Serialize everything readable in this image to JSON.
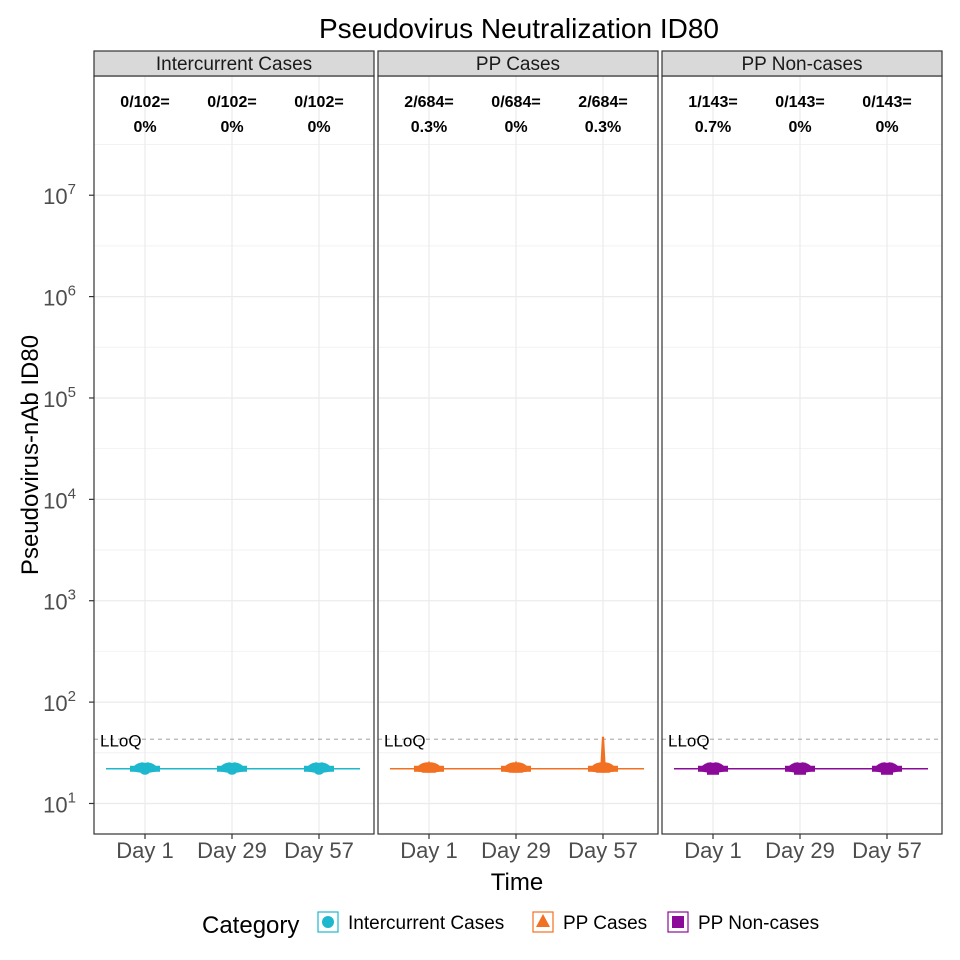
{
  "chart_data": {
    "type": "violin",
    "title": "Pseudovirus Neutralization ID80",
    "xlabel": "Time",
    "ylabel": "Pseudovirus-nAb ID80",
    "y_scale": "log10",
    "ylim": [
      5,
      150000000
    ],
    "y_ticks": [
      {
        "base": "10",
        "exp": "1",
        "value": 10
      },
      {
        "base": "10",
        "exp": "2",
        "value": 100
      },
      {
        "base": "10",
        "exp": "3",
        "value": 1000
      },
      {
        "base": "10",
        "exp": "4",
        "value": 10000
      },
      {
        "base": "10",
        "exp": "5",
        "value": 100000
      },
      {
        "base": "10",
        "exp": "6",
        "value": 1000000
      },
      {
        "base": "10",
        "exp": "7",
        "value": 10000000
      }
    ],
    "categories": [
      "Day 1",
      "Day 29",
      "Day 57"
    ],
    "grid": true,
    "lloq": {
      "label": "LLoQ",
      "value": 43
    },
    "legend": {
      "title": "Category",
      "position": "bottom",
      "entries": [
        {
          "label": "Intercurrent Cases",
          "color": "#1EB8CE",
          "shape": "circle"
        },
        {
          "label": "PP Cases",
          "color": "#F27022",
          "shape": "triangle"
        },
        {
          "label": "PP Non-cases",
          "color": "#8B0A9A",
          "shape": "square"
        }
      ]
    },
    "panels": [
      {
        "strip": "Intercurrent Cases",
        "color": "#1EB8CE",
        "shape": "circle",
        "annotations": [
          {
            "line1": "0/102=",
            "line2": "0%"
          },
          {
            "line1": "0/102=",
            "line2": "0%"
          },
          {
            "line1": "0/102=",
            "line2": "0%"
          }
        ],
        "values": [
          22,
          22,
          22
        ],
        "max": [
          22,
          22,
          22
        ]
      },
      {
        "strip": "PP Cases",
        "color": "#F27022",
        "shape": "triangle",
        "annotations": [
          {
            "line1": "2/684=",
            "line2": "0.3%"
          },
          {
            "line1": "0/684=",
            "line2": "0%"
          },
          {
            "line1": "2/684=",
            "line2": "0.3%"
          }
        ],
        "values": [
          22,
          22,
          22
        ],
        "max": [
          25,
          25,
          45
        ]
      },
      {
        "strip": "PP Non-cases",
        "color": "#8B0A9A",
        "shape": "square",
        "annotations": [
          {
            "line1": "1/143=",
            "line2": "0.7%"
          },
          {
            "line1": "0/143=",
            "line2": "0%"
          },
          {
            "line1": "0/143=",
            "line2": "0%"
          }
        ],
        "values": [
          22,
          22,
          22
        ],
        "max": [
          22,
          22,
          22
        ]
      }
    ]
  }
}
